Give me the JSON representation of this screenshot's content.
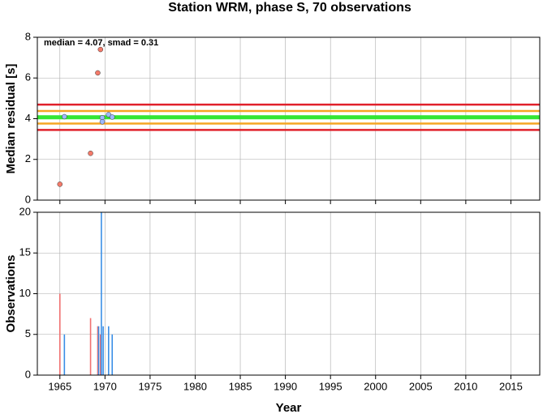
{
  "chart_data": [
    {
      "type": "scatter",
      "title": "Station WRM, phase S, 70 observations",
      "ylabel": "Median residual [s]",
      "annotation": "median = 4.07, smad = 0.31",
      "xlim": [
        1962.5,
        2018.2
      ],
      "xticks": [
        1965,
        1970,
        1975,
        1980,
        1985,
        1990,
        1995,
        2000,
        2005,
        2010,
        2015
      ],
      "ylim": [
        0,
        8
      ],
      "yticks": [
        0,
        2,
        4,
        6,
        8
      ],
      "grid": true,
      "reference_lines": [
        {
          "value": 4.69,
          "color": "#e0202a"
        },
        {
          "value": 3.45,
          "color": "#e0202a"
        },
        {
          "value": 4.38,
          "color": "#f5a623"
        },
        {
          "value": 3.76,
          "color": "#f5a623"
        },
        {
          "value": 4.07,
          "color": "#33e633"
        }
      ],
      "series": [
        {
          "color": "#f47a6a",
          "x": [
            1965.0,
            1968.4,
            1969.2,
            1969.5
          ],
          "values": [
            0.78,
            2.3,
            6.25,
            7.4
          ]
        },
        {
          "color": "#9db8ff",
          "x": [
            1965.5,
            1969.7,
            1969.7,
            1970.4,
            1970.8
          ],
          "values": [
            4.1,
            4.05,
            3.85,
            4.2,
            4.08
          ]
        }
      ]
    },
    {
      "type": "bar",
      "xlabel": "Year",
      "ylabel": "Observations",
      "xlim": [
        1962.5,
        2018.2
      ],
      "xticks": [
        1965,
        1970,
        1975,
        1980,
        1985,
        1990,
        1995,
        2000,
        2005,
        2010,
        2015
      ],
      "ylim": [
        0,
        20
      ],
      "yticks": [
        0,
        5,
        10,
        15,
        20
      ],
      "grid": true,
      "series": [
        {
          "color": "#f07070",
          "x": [
            1965.0,
            1968.4,
            1969.2,
            1969.5
          ],
          "values": [
            10,
            7,
            6,
            5
          ]
        },
        {
          "color": "#3a8ee6",
          "x": [
            1965.5,
            1969.3,
            1969.6,
            1969.8,
            1970.4,
            1970.8
          ],
          "values": [
            5,
            6,
            20,
            6,
            6,
            5
          ]
        }
      ]
    }
  ]
}
